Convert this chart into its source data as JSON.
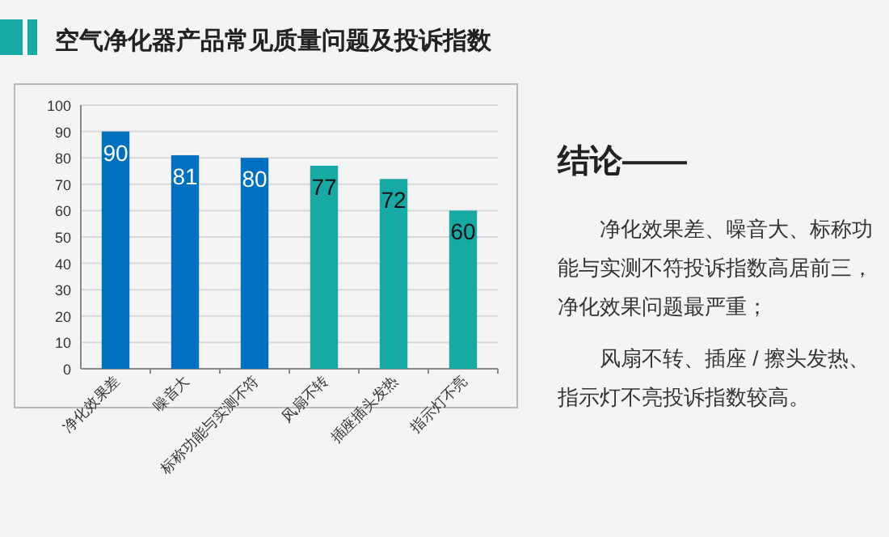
{
  "chart_data": {
    "type": "bar",
    "title": "空气净化器产品常见质量问题及投诉指数",
    "categories": [
      "净化效果差",
      "噪音大",
      "标称功能与实测不符",
      "风扇不转",
      "插座插头发热",
      "指示灯不亮"
    ],
    "values": [
      90,
      81,
      80,
      77,
      72,
      60
    ],
    "colors": [
      "#0070c0",
      "#0070c0",
      "#0070c0",
      "#17a9a4",
      "#17a9a4",
      "#17a9a4"
    ],
    "ylim": [
      0,
      100
    ],
    "yticks": [
      0,
      10,
      20,
      30,
      40,
      50,
      60,
      70,
      80,
      90,
      100
    ],
    "grid": "y",
    "data_labels": true,
    "annotations": [
      "结论——",
      "净化效果差、噪音大、标称功能与实测不符投诉指数高居前三，净化效果问题最严重；",
      "风扇不转、插座 / 擦头发热、指示灯不亮投诉指数较高。"
    ]
  }
}
